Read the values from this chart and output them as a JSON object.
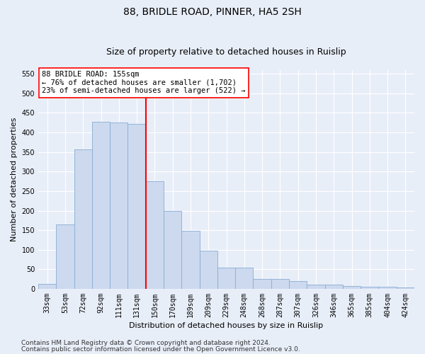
{
  "title": "88, BRIDLE ROAD, PINNER, HA5 2SH",
  "subtitle": "Size of property relative to detached houses in Ruislip",
  "xlabel": "Distribution of detached houses by size in Ruislip",
  "ylabel": "Number of detached properties",
  "categories": [
    "33sqm",
    "53sqm",
    "72sqm",
    "92sqm",
    "111sqm",
    "131sqm",
    "150sqm",
    "170sqm",
    "189sqm",
    "209sqm",
    "229sqm",
    "248sqm",
    "268sqm",
    "287sqm",
    "307sqm",
    "326sqm",
    "346sqm",
    "365sqm",
    "385sqm",
    "404sqm",
    "424sqm"
  ],
  "values": [
    13,
    165,
    357,
    428,
    425,
    422,
    275,
    199,
    148,
    97,
    55,
    55,
    26,
    26,
    20,
    11,
    11,
    7,
    5,
    5,
    4
  ],
  "bar_color": "#ccd9ee",
  "bar_edge_color": "#8aadd4",
  "vline_x_index": 6,
  "vline_color": "red",
  "annotation_text": "88 BRIDLE ROAD: 155sqm\n← 76% of detached houses are smaller (1,702)\n23% of semi-detached houses are larger (522) →",
  "annotation_box_facecolor": "#ffffff",
  "annotation_box_edgecolor": "red",
  "ylim": [
    0,
    560
  ],
  "yticks": [
    0,
    50,
    100,
    150,
    200,
    250,
    300,
    350,
    400,
    450,
    500,
    550
  ],
  "grid_color": "#ffffff",
  "background_color": "#e8eef8",
  "footer1": "Contains HM Land Registry data © Crown copyright and database right 2024.",
  "footer2": "Contains public sector information licensed under the Open Government Licence v3.0.",
  "title_fontsize": 10,
  "subtitle_fontsize": 9,
  "xlabel_fontsize": 8,
  "ylabel_fontsize": 8,
  "tick_fontsize": 7,
  "annotation_fontsize": 7.5,
  "footer_fontsize": 6.5
}
